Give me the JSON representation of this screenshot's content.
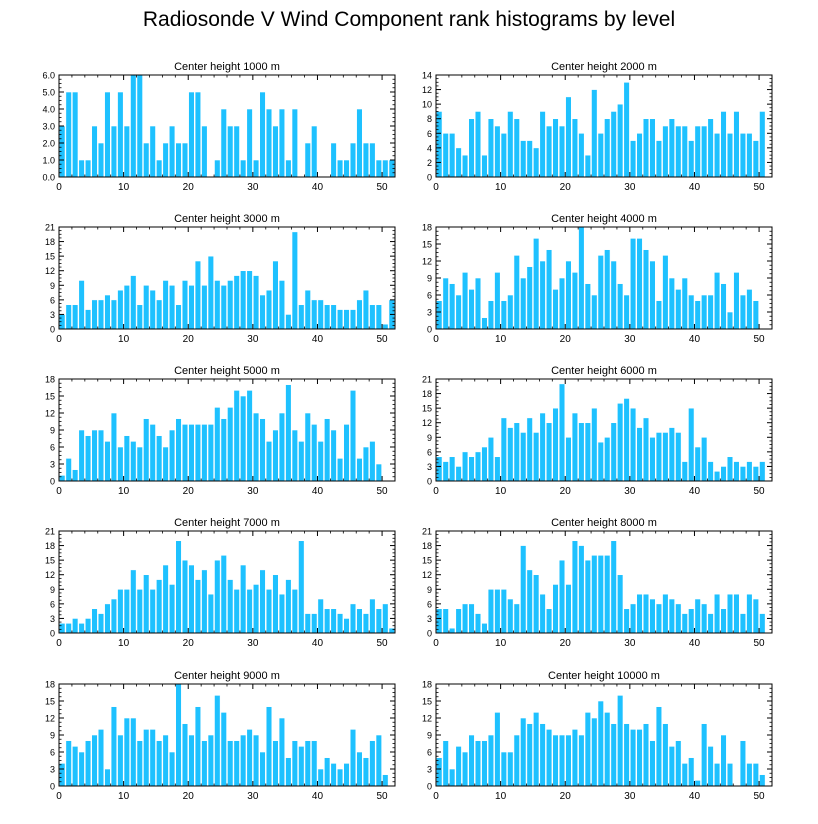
{
  "title": "Radiosonde V Wind Component rank histograms by level",
  "colors": {
    "bar": "#1ec1ff",
    "bar_edge": "#ffffff",
    "axis": "#000000"
  },
  "chart_data": [
    {
      "type": "bar",
      "title": "Center height 1000 m",
      "xlim": [
        0,
        52
      ],
      "ylim": [
        0,
        6
      ],
      "xticks": [
        0,
        10,
        20,
        30,
        40,
        50
      ],
      "yticks": [
        0,
        1,
        2,
        3,
        4,
        5,
        6
      ],
      "ytick_labels": [
        "0.0",
        "1.0",
        "2.0",
        "3.0",
        "4.0",
        "5.0",
        "6.0"
      ],
      "values": [
        3,
        5,
        5,
        1,
        1,
        3,
        2,
        5,
        3,
        5,
        3,
        6,
        6,
        2,
        3,
        1,
        2,
        3,
        2,
        2,
        5,
        5,
        3,
        0,
        1,
        4,
        3,
        3,
        1,
        4,
        1,
        5,
        4,
        3,
        4,
        1,
        4,
        0,
        2,
        3,
        0,
        0,
        2,
        1,
        1,
        2,
        4,
        2,
        2,
        1,
        1,
        1
      ]
    },
    {
      "type": "bar",
      "title": "Center height 2000 m",
      "xlim": [
        0,
        52
      ],
      "ylim": [
        0,
        14
      ],
      "xticks": [
        0,
        10,
        20,
        30,
        40,
        50
      ],
      "yticks": [
        0,
        2,
        4,
        6,
        8,
        10,
        12,
        14
      ],
      "ytick_labels": [
        "0",
        "2",
        "4",
        "6",
        "8",
        "10",
        "12",
        "14"
      ],
      "values": [
        9,
        6,
        6,
        4,
        3,
        8,
        9,
        3,
        8,
        7,
        6,
        9,
        8,
        5,
        5,
        4,
        9,
        7,
        8,
        7,
        11,
        8,
        6,
        3,
        12,
        6,
        8,
        9,
        10,
        13,
        5,
        6,
        8,
        8,
        5,
        7,
        8,
        7,
        7,
        5,
        7,
        7,
        8,
        6,
        9,
        6,
        9,
        6,
        6,
        5,
        9,
        0
      ]
    },
    {
      "type": "bar",
      "title": "Center height 3000 m",
      "xlim": [
        0,
        52
      ],
      "ylim": [
        0,
        21
      ],
      "xticks": [
        0,
        10,
        20,
        30,
        40,
        50
      ],
      "yticks": [
        0,
        3,
        6,
        9,
        12,
        15,
        18,
        21
      ],
      "ytick_labels": [
        "0",
        "3",
        "6",
        "9",
        "12",
        "15",
        "18",
        "21"
      ],
      "values": [
        3,
        5,
        5,
        10,
        4,
        6,
        6,
        7,
        6,
        8,
        9,
        11,
        5,
        9,
        8,
        6,
        10,
        9,
        5,
        10,
        9,
        14,
        9,
        15,
        10,
        9,
        10,
        11,
        12,
        12,
        11,
        7,
        8,
        14,
        10,
        3,
        20,
        5,
        8,
        6,
        6,
        5,
        5,
        4,
        4,
        4,
        6,
        8,
        5,
        5,
        1,
        6
      ]
    },
    {
      "type": "bar",
      "title": "Center height 4000 m",
      "xlim": [
        0,
        52
      ],
      "ylim": [
        0,
        18
      ],
      "xticks": [
        0,
        10,
        20,
        30,
        40,
        50
      ],
      "yticks": [
        0,
        3,
        6,
        9,
        12,
        15,
        18
      ],
      "ytick_labels": [
        "0",
        "3",
        "6",
        "9",
        "12",
        "15",
        "18"
      ],
      "values": [
        5,
        9,
        8,
        6,
        10,
        7,
        9,
        2,
        5,
        10,
        5,
        6,
        13,
        9,
        11,
        16,
        12,
        14,
        7,
        9,
        12,
        10,
        18,
        8,
        6,
        13,
        14,
        12,
        8,
        6,
        16,
        16,
        14,
        12,
        5,
        13,
        9,
        7,
        9,
        6,
        5,
        6,
        6,
        10,
        8,
        3,
        10,
        6,
        7,
        5,
        0,
        0
      ]
    },
    {
      "type": "bar",
      "title": "Center height 5000 m",
      "xlim": [
        0,
        52
      ],
      "ylim": [
        0,
        18
      ],
      "xticks": [
        0,
        10,
        20,
        30,
        40,
        50
      ],
      "yticks": [
        0,
        3,
        6,
        9,
        12,
        15,
        18
      ],
      "ytick_labels": [
        "0",
        "3",
        "6",
        "9",
        "12",
        "15",
        "18"
      ],
      "values": [
        1,
        4,
        2,
        9,
        8,
        9,
        9,
        7,
        12,
        6,
        8,
        7,
        6,
        11,
        10,
        8,
        6,
        9,
        11,
        10,
        10,
        10,
        10,
        10,
        13,
        11,
        13,
        16,
        15,
        16,
        12,
        11,
        7,
        9,
        12,
        17,
        9,
        7,
        12,
        10,
        7,
        11,
        9,
        4,
        10,
        16,
        4,
        6,
        7,
        3,
        0,
        0
      ]
    },
    {
      "type": "bar",
      "title": "Center height 6000 m",
      "xlim": [
        0,
        52
      ],
      "ylim": [
        0,
        21
      ],
      "xticks": [
        0,
        10,
        20,
        30,
        40,
        50
      ],
      "yticks": [
        0,
        3,
        6,
        9,
        12,
        15,
        18,
        21
      ],
      "ytick_labels": [
        "0",
        "3",
        "6",
        "9",
        "12",
        "15",
        "18",
        "21"
      ],
      "values": [
        5,
        4,
        5,
        3,
        6,
        5,
        6,
        7,
        9,
        5,
        13,
        11,
        12,
        10,
        13,
        10,
        14,
        12,
        15,
        20,
        9,
        14,
        12,
        12,
        15,
        8,
        9,
        12,
        16,
        17,
        15,
        11,
        13,
        9,
        10,
        10,
        11,
        10,
        4,
        15,
        7,
        9,
        4,
        2,
        3,
        5,
        4,
        3,
        4,
        3,
        4,
        0
      ]
    },
    {
      "type": "bar",
      "title": "Center height 7000 m",
      "xlim": [
        0,
        52
      ],
      "ylim": [
        0,
        21
      ],
      "xticks": [
        0,
        10,
        20,
        30,
        40,
        50
      ],
      "yticks": [
        0,
        3,
        6,
        9,
        12,
        15,
        18,
        21
      ],
      "ytick_labels": [
        "0",
        "3",
        "6",
        "9",
        "12",
        "15",
        "18",
        "21"
      ],
      "values": [
        2,
        2,
        3,
        2,
        3,
        5,
        4,
        6,
        7,
        9,
        9,
        13,
        9,
        12,
        9,
        11,
        14,
        10,
        19,
        15,
        14,
        11,
        13,
        8,
        15,
        16,
        11,
        9,
        14,
        9,
        10,
        13,
        9,
        12,
        8,
        11,
        9,
        19,
        4,
        4,
        7,
        5,
        5,
        4,
        3,
        6,
        5,
        4,
        7,
        5,
        6,
        1
      ]
    },
    {
      "type": "bar",
      "title": "Center height 8000 m",
      "xlim": [
        0,
        52
      ],
      "ylim": [
        0,
        21
      ],
      "xticks": [
        0,
        10,
        20,
        30,
        40,
        50
      ],
      "yticks": [
        0,
        3,
        6,
        9,
        12,
        15,
        18,
        21
      ],
      "ytick_labels": [
        "0",
        "3",
        "6",
        "9",
        "12",
        "15",
        "18",
        "21"
      ],
      "values": [
        5,
        5,
        1,
        5,
        6,
        6,
        4,
        2,
        9,
        9,
        9,
        7,
        6,
        18,
        13,
        12,
        8,
        5,
        10,
        15,
        10,
        19,
        18,
        15,
        16,
        16,
        16,
        19,
        12,
        5,
        6,
        8,
        8,
        7,
        6,
        8,
        7,
        6,
        4,
        5,
        7,
        6,
        4,
        8,
        5,
        8,
        8,
        4,
        8,
        7,
        4,
        0
      ]
    },
    {
      "type": "bar",
      "title": "Center height 9000 m",
      "xlim": [
        0,
        52
      ],
      "ylim": [
        0,
        18
      ],
      "xticks": [
        0,
        10,
        20,
        30,
        40,
        50
      ],
      "yticks": [
        0,
        3,
        6,
        9,
        12,
        15,
        18
      ],
      "ytick_labels": [
        "0",
        "3",
        "6",
        "9",
        "12",
        "15",
        "18"
      ],
      "values": [
        4,
        8,
        7,
        6,
        8,
        9,
        10,
        3,
        14,
        9,
        12,
        12,
        8,
        10,
        10,
        8,
        9,
        6,
        18,
        11,
        9,
        14,
        8,
        9,
        16,
        13,
        8,
        8,
        9,
        10,
        9,
        6,
        14,
        8,
        12,
        5,
        8,
        7,
        8,
        8,
        3,
        5,
        4,
        3,
        4,
        10,
        6,
        5,
        8,
        9,
        2,
        0
      ]
    },
    {
      "type": "bar",
      "title": "Center height 10000 m",
      "xlim": [
        0,
        52
      ],
      "ylim": [
        0,
        18
      ],
      "xticks": [
        0,
        10,
        20,
        30,
        40,
        50
      ],
      "yticks": [
        0,
        3,
        6,
        9,
        12,
        15,
        18
      ],
      "ytick_labels": [
        "0",
        "3",
        "6",
        "9",
        "12",
        "15",
        "18"
      ],
      "values": [
        5,
        8,
        3,
        7,
        6,
        9,
        8,
        8,
        9,
        13,
        6,
        6,
        9,
        12,
        11,
        13,
        11,
        10,
        9,
        9,
        9,
        10,
        9,
        13,
        12,
        15,
        13,
        11,
        16,
        11,
        10,
        10,
        11,
        8,
        14,
        11,
        7,
        8,
        4,
        5,
        1,
        11,
        7,
        4,
        9,
        4,
        0,
        8,
        4,
        4,
        2,
        0
      ]
    }
  ]
}
